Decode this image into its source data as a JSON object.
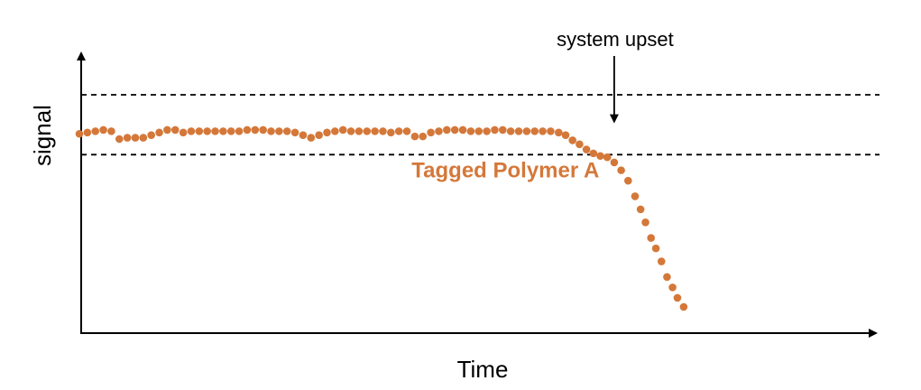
{
  "chart_data": {
    "type": "scatter",
    "xlabel": "Time",
    "ylabel": "signal",
    "xlim": [
      0,
      100
    ],
    "ylim": [
      0,
      100
    ],
    "thresholds": [
      {
        "name": "upper",
        "y": 85
      },
      {
        "name": "lower",
        "y": 62
      }
    ],
    "annotation": {
      "text": "system upset",
      "x": 77,
      "y": 73
    },
    "series_label": {
      "text": "Tagged Polymer A",
      "x": 49,
      "y": 54
    },
    "series": [
      {
        "name": "Tagged Polymer A",
        "color": "#D4783A",
        "x": [
          0,
          1.15,
          2.3,
          3.45,
          4.6,
          5.75,
          6.9,
          8.05,
          9.2,
          10.35,
          11.5,
          12.65,
          13.8,
          14.95,
          16.1,
          17.25,
          18.4,
          19.55,
          20.7,
          21.85,
          23,
          24.15,
          25.3,
          26.45,
          27.6,
          28.75,
          29.9,
          31.05,
          32.2,
          33.35,
          34.5,
          35.65,
          36.8,
          37.95,
          39.1,
          40.25,
          41.4,
          42.55,
          43.7,
          44.85,
          46,
          47.15,
          48.3,
          49.45,
          50.6,
          51.75,
          52.9,
          54.05,
          55.2,
          56.35,
          57.5,
          58.65,
          59.8,
          60.95,
          62.1,
          63.25,
          64.4,
          65.55,
          66.7,
          67.85,
          69,
          70,
          71,
          72,
          73,
          74,
          75,
          76,
          77,
          78,
          79,
          80,
          80.8,
          81.5,
          82.3,
          83,
          83.8,
          84.6,
          85.4,
          86.1,
          87
        ],
        "y": [
          70,
          70.5,
          71,
          71.5,
          71,
          68,
          68.5,
          68.5,
          68.5,
          69.5,
          70.5,
          71.5,
          71.5,
          70.5,
          71,
          71,
          71,
          71,
          71,
          71,
          71,
          71.5,
          71.5,
          71.5,
          71,
          71,
          71,
          70.5,
          69.5,
          68.5,
          69.5,
          70.5,
          71,
          71.5,
          71,
          71,
          71,
          71,
          71,
          70.5,
          71,
          71,
          69,
          69,
          70.5,
          71,
          71.5,
          71.5,
          71.5,
          71,
          71,
          71,
          71.5,
          71.5,
          71,
          71,
          71,
          71,
          71,
          71,
          70.5,
          69.5,
          67.5,
          66,
          64,
          62.5,
          61.5,
          61,
          59,
          56,
          52,
          46,
          41,
          36,
          30,
          26,
          21,
          15,
          11,
          7,
          3.5
        ]
      }
    ]
  }
}
